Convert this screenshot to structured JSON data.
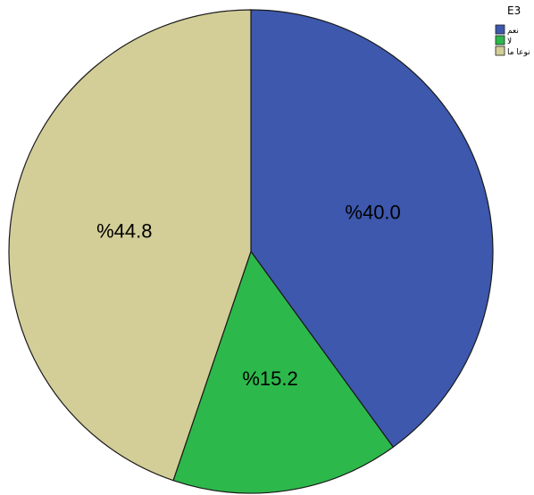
{
  "chart_data": {
    "type": "pie",
    "legend_title": "E3",
    "legend_position": "top-right",
    "start_angle": "12 o'clock",
    "direction": "clockwise",
    "slices": [
      {
        "label": "نعم",
        "value": 40.0,
        "data_label": "%40.0",
        "color": "#3d58ad"
      },
      {
        "label": "لا",
        "value": 15.2,
        "data_label": "%15.2",
        "color": "#2db84b"
      },
      {
        "label": "نوعا ما",
        "value": 44.8,
        "data_label": "%44.8",
        "color": "#d3ce97"
      }
    ]
  }
}
